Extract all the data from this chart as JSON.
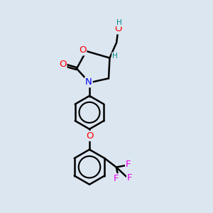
{
  "background_color": "#dce6f0",
  "bond_color": "#000000",
  "atom_colors": {
    "O": "#ff0000",
    "N": "#0000ff",
    "F": "#ee00ee",
    "H": "#008888",
    "C": "#000000"
  },
  "bond_width": 1.8,
  "figsize": [
    3.0,
    3.0
  ],
  "dpi": 100
}
